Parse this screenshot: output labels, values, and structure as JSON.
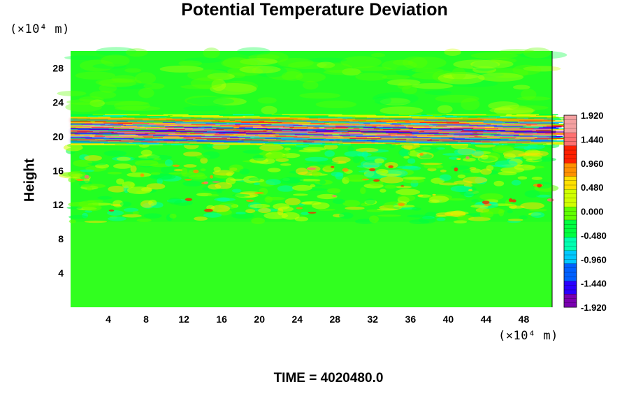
{
  "chart_data": {
    "type": "heatmap",
    "title": "Potential Temperature Deviation",
    "ylabel": "Height",
    "x_unit": "(×10⁴ m)",
    "y_unit": "(×10⁴ m)",
    "footer": "TIME = 4020480.0",
    "x_ticks": [
      "4",
      "8",
      "12",
      "16",
      "20",
      "24",
      "28",
      "32",
      "36",
      "40",
      "44",
      "48"
    ],
    "x_tick_values": [
      4,
      8,
      12,
      16,
      20,
      24,
      28,
      32,
      36,
      40,
      44,
      48
    ],
    "y_ticks": [
      "4",
      "8",
      "12",
      "16",
      "20",
      "24",
      "28"
    ],
    "y_tick_values": [
      4,
      8,
      12,
      16,
      20,
      24,
      28
    ],
    "xlim": [
      0,
      51
    ],
    "ylim": [
      0,
      30
    ],
    "colorbar_labels": [
      "1.920",
      "1.440",
      "0.960",
      "0.480",
      "0.000",
      "-0.480",
      "-0.960",
      "-1.440",
      "-1.920"
    ],
    "colorbar_values": [
      1.92,
      1.44,
      0.96,
      0.48,
      0.0,
      -0.48,
      -0.96,
      -1.44,
      -1.92
    ],
    "colormap": [
      "#7a00b0",
      "#2a00ff",
      "#0060ff",
      "#00c8ff",
      "#00ffb0",
      "#00ff40",
      "#60ff00",
      "#d0ff00",
      "#ffe000",
      "#ff9000",
      "#ff2000",
      "#ff7070",
      "#f4a0a0"
    ],
    "background_color": "#22ff22"
  }
}
